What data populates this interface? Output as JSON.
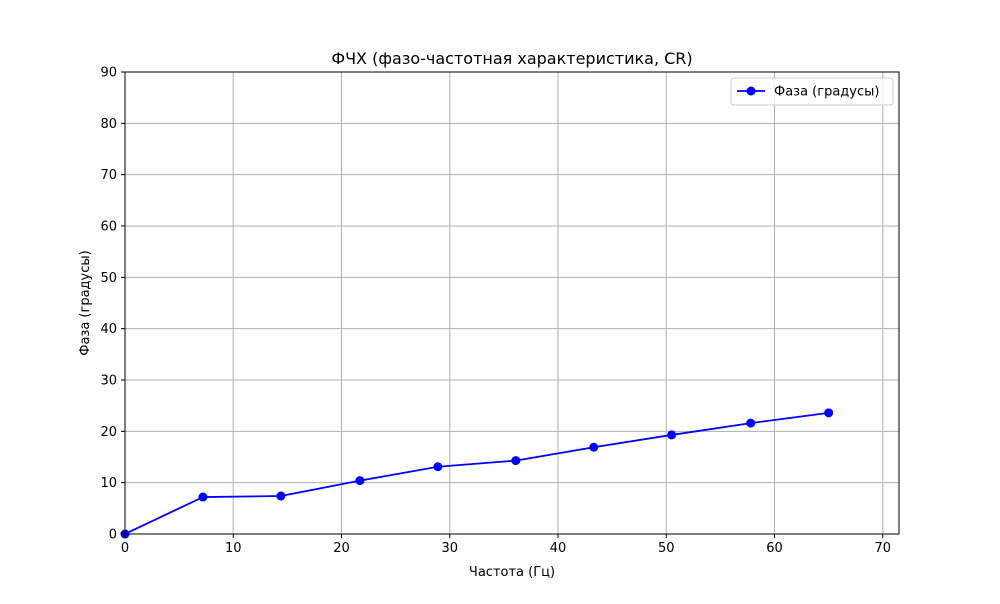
{
  "chart_data": {
    "type": "line",
    "title": "ФЧХ (фазо-частотная характеристика, CR)",
    "xlabel": "Частота (Гц)",
    "ylabel": "Фаза (градусы)",
    "xlim": [
      0,
      71.5
    ],
    "ylim": [
      0,
      90
    ],
    "xticks": [
      0,
      10,
      20,
      30,
      40,
      50,
      60,
      70
    ],
    "yticks": [
      0,
      10,
      20,
      30,
      40,
      50,
      60,
      70,
      80,
      90
    ],
    "grid": true,
    "legend_position": "top-right",
    "series": [
      {
        "name": "Фаза (градусы)",
        "color": "#0000ff",
        "marker": "circle",
        "x": [
          0,
          7.2,
          14.4,
          21.7,
          28.9,
          36.1,
          43.3,
          50.5,
          57.8,
          65.0
        ],
        "y": [
          0,
          7.2,
          7.4,
          10.4,
          13.1,
          14.3,
          16.9,
          19.3,
          21.6,
          23.6
        ]
      }
    ]
  }
}
